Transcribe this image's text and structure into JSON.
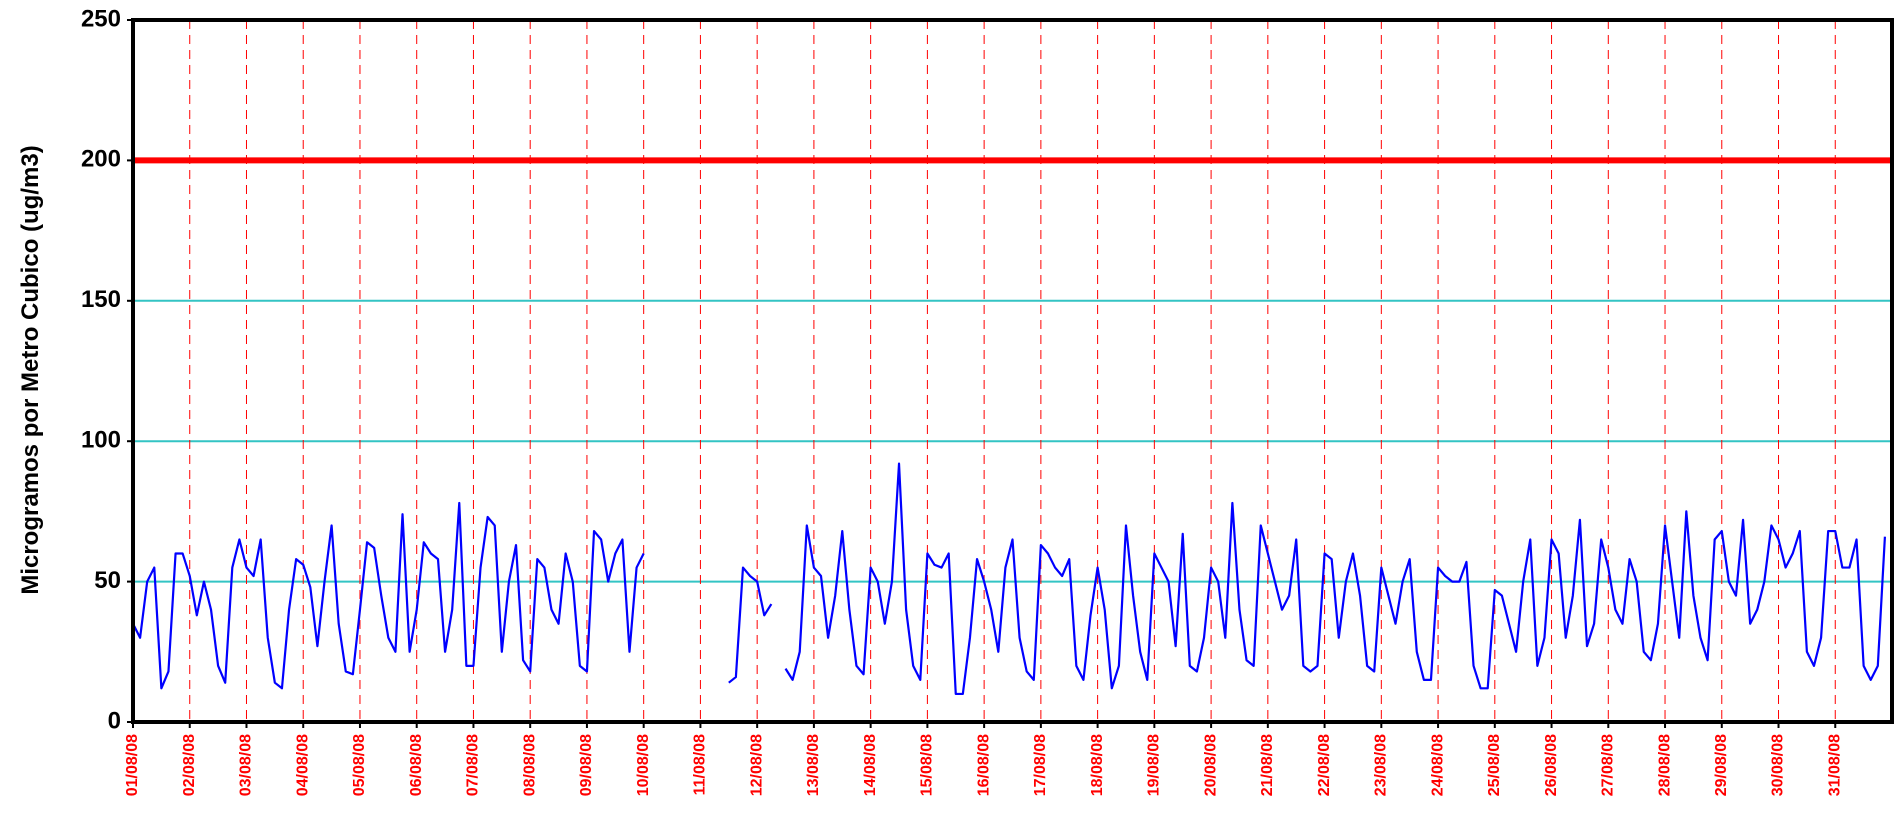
{
  "chart_data": {
    "type": "line",
    "y_label": "Microgramos por Metro Cubico (ug/m3)",
    "categories": [
      "01/08/08",
      null,
      null,
      null,
      null,
      null,
      null,
      null,
      "02/08/08",
      null,
      null,
      null,
      null,
      null,
      null,
      null,
      "03/08/08",
      null,
      null,
      null,
      null,
      null,
      null,
      null,
      "04/08/08",
      null,
      null,
      null,
      null,
      null,
      null,
      null,
      "05/08/08",
      null,
      null,
      null,
      null,
      null,
      null,
      null,
      "06/08/08",
      null,
      null,
      null,
      null,
      null,
      null,
      null,
      "07/08/08",
      null,
      null,
      null,
      null,
      null,
      null,
      null,
      "08/08/08",
      null,
      null,
      null,
      null,
      null,
      null,
      null,
      "09/08/08",
      null,
      null,
      null,
      null,
      null,
      null,
      null,
      "10/08/08",
      null,
      null,
      null,
      null,
      null,
      null,
      null,
      "11/08/08",
      null,
      null,
      null,
      null,
      null,
      null,
      null,
      "12/08/08",
      null,
      null,
      null,
      null,
      null,
      null,
      null,
      "13/08/08",
      null,
      null,
      null,
      null,
      null,
      null,
      null,
      "14/08/08",
      null,
      null,
      null,
      null,
      null,
      null,
      null,
      "15/08/08",
      null,
      null,
      null,
      null,
      null,
      null,
      null,
      "16/08/08",
      null,
      null,
      null,
      null,
      null,
      null,
      null,
      "17/08/08",
      null,
      null,
      null,
      null,
      null,
      null,
      null,
      "18/08/08",
      null,
      null,
      null,
      null,
      null,
      null,
      null,
      "19/08/08",
      null,
      null,
      null,
      null,
      null,
      null,
      null,
      "20/08/08",
      null,
      null,
      null,
      null,
      null,
      null,
      null,
      "21/08/08",
      null,
      null,
      null,
      null,
      null,
      null,
      null,
      "22/08/08",
      null,
      null,
      null,
      null,
      null,
      null,
      null,
      "23/08/08",
      null,
      null,
      null,
      null,
      null,
      null,
      null,
      "24/08/08",
      null,
      null,
      null,
      null,
      null,
      null,
      null,
      "25/08/08",
      null,
      null,
      null,
      null,
      null,
      null,
      null,
      "26/08/08",
      null,
      null,
      null,
      null,
      null,
      null,
      null,
      "27/08/08",
      null,
      null,
      null,
      null,
      null,
      null,
      null,
      "28/08/08",
      null,
      null,
      null,
      null,
      null,
      null,
      null,
      "29/08/08",
      null,
      null,
      null,
      null,
      null,
      null,
      null,
      "30/08/08",
      null,
      null,
      null,
      null,
      null,
      null,
      null,
      "31/08/08",
      null,
      null,
      null,
      null,
      null,
      null,
      null
    ],
    "values": [
      35,
      30,
      50,
      55,
      12,
      18,
      60,
      60,
      52,
      38,
      50,
      40,
      20,
      14,
      55,
      65,
      55,
      52,
      65,
      30,
      14,
      12,
      40,
      58,
      56,
      48,
      27,
      50,
      70,
      35,
      18,
      17,
      40,
      64,
      62,
      45,
      30,
      25,
      74,
      25,
      40,
      64,
      60,
      58,
      25,
      40,
      78,
      20,
      20,
      55,
      73,
      70,
      25,
      50,
      63,
      22,
      18,
      58,
      55,
      40,
      35,
      60,
      50,
      20,
      18,
      68,
      65,
      50,
      60,
      65,
      25,
      55,
      60,
      null,
      null,
      null,
      null,
      null,
      null,
      null,
      null,
      null,
      null,
      null,
      14,
      16,
      55,
      52,
      50,
      38,
      42,
      null,
      19,
      15,
      25,
      70,
      55,
      52,
      30,
      45,
      68,
      40,
      20,
      17,
      55,
      50,
      35,
      50,
      92,
      40,
      20,
      15,
      60,
      56,
      55,
      60,
      10,
      10,
      30,
      58,
      50,
      40,
      25,
      55,
      65,
      30,
      18,
      15,
      63,
      60,
      55,
      52,
      58,
      20,
      15,
      38,
      55,
      40,
      12,
      20,
      70,
      45,
      25,
      15,
      60,
      55,
      50,
      27,
      67,
      20,
      18,
      30,
      55,
      50,
      30,
      78,
      40,
      22,
      20,
      70,
      60,
      50,
      40,
      45,
      65,
      20,
      18,
      20,
      60,
      58,
      30,
      50,
      60,
      45,
      20,
      18,
      55,
      45,
      35,
      50,
      58,
      25,
      15,
      15,
      55,
      52,
      50,
      50,
      57,
      20,
      12,
      12,
      47,
      45,
      35,
      25,
      50,
      65,
      20,
      30,
      65,
      60,
      30,
      45,
      72,
      27,
      35,
      65,
      55,
      40,
      35,
      58,
      50,
      25,
      22,
      35,
      70,
      50,
      30,
      75,
      45,
      30,
      22,
      65,
      68,
      50,
      45,
      72,
      35,
      40,
      50,
      70,
      65,
      55,
      60,
      68,
      25,
      20,
      30,
      68,
      68,
      55,
      55,
      65,
      20,
      15,
      20,
      66
    ],
    "color": "#0000ff",
    "ylim": [
      0,
      250
    ],
    "yticks": [
      0,
      50,
      100,
      150,
      200,
      250
    ],
    "grid": true,
    "grid_color": "#33c4c4",
    "x_grid_color": "#ff0000",
    "reference_line": {
      "value": 200,
      "color": "#ff0000"
    }
  }
}
